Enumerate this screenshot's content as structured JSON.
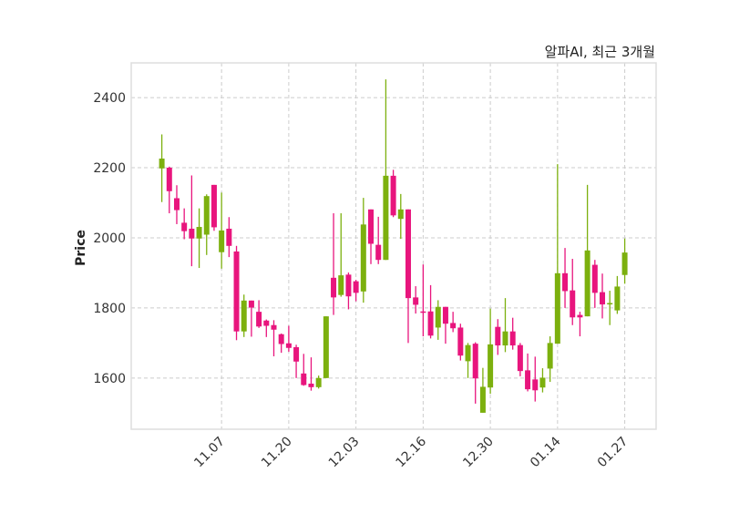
{
  "chart_data": {
    "type": "candlestick",
    "title": "알파AI, 최근 3개월",
    "ylabel": "Price",
    "xlabel": "",
    "ylim": [
      1454,
      2499
    ],
    "xlim": [
      -4.1,
      66.2
    ],
    "grid": true,
    "colors": {
      "up": "#7cb00e",
      "down": "#e8157d",
      "grid": "#cccccc",
      "frame": "#dddddd"
    },
    "yticks": [
      1600,
      1800,
      2000,
      2200,
      2400
    ],
    "ytick_labels": [
      "1600",
      "1800",
      "2000",
      "2200",
      "2400"
    ],
    "xticks": [
      {
        "index": 8,
        "label": "11.07"
      },
      {
        "index": 17,
        "label": "11.20"
      },
      {
        "index": 26,
        "label": "12.03"
      },
      {
        "index": 35,
        "label": "12.16"
      },
      {
        "index": 44,
        "label": "12.30"
      },
      {
        "index": 53,
        "label": "01.14"
      },
      {
        "index": 62,
        "label": "01.27"
      }
    ],
    "ohlc": [
      [
        2198,
        2295,
        2102,
        2226
      ],
      [
        2200,
        2203,
        2070,
        2133
      ],
      [
        2113,
        2150,
        2039,
        2079
      ],
      [
        2043,
        2084,
        1996,
        2019
      ],
      [
        2026,
        2178,
        1919,
        1998
      ],
      [
        1998,
        2084,
        1914,
        2031
      ],
      [
        2009,
        2124,
        1951,
        2119
      ],
      [
        2151,
        2151,
        2020,
        2030
      ],
      [
        1959,
        2129,
        1912,
        2021
      ],
      [
        2026,
        2059,
        1945,
        1977
      ],
      [
        1961,
        1977,
        1708,
        1733
      ],
      [
        1733,
        1838,
        1717,
        1821
      ],
      [
        1821,
        1821,
        1718,
        1801
      ],
      [
        1789,
        1822,
        1743,
        1747
      ],
      [
        1764,
        1767,
        1717,
        1749
      ],
      [
        1751,
        1765,
        1662,
        1738
      ],
      [
        1725,
        1727,
        1672,
        1697
      ],
      [
        1699,
        1749,
        1675,
        1686
      ],
      [
        1688,
        1695,
        1600,
        1647
      ],
      [
        1613,
        1669,
        1578,
        1580
      ],
      [
        1584,
        1659,
        1564,
        1574
      ],
      [
        1574,
        1607,
        1570,
        1600
      ],
      [
        1600,
        1776,
        1600,
        1776
      ],
      [
        1886,
        2070,
        1780,
        1830
      ],
      [
        1837,
        2070,
        1832,
        1893
      ],
      [
        1895,
        1901,
        1796,
        1833
      ],
      [
        1876,
        1880,
        1819,
        1843
      ],
      [
        1847,
        2114,
        1815,
        2038
      ],
      [
        2081,
        2081,
        1925,
        1983
      ],
      [
        1980,
        2060,
        1925,
        1937
      ],
      [
        1937,
        2452,
        1937,
        2177
      ],
      [
        2177,
        2194,
        2059,
        2064
      ],
      [
        2054,
        2125,
        1997,
        2081
      ],
      [
        2081,
        2081,
        1700,
        1828
      ],
      [
        1830,
        1862,
        1784,
        1809
      ],
      [
        1790,
        1924,
        1719,
        1789
      ],
      [
        1790,
        1865,
        1713,
        1721
      ],
      [
        1744,
        1822,
        1709,
        1803
      ],
      [
        1803,
        1803,
        1698,
        1755
      ],
      [
        1757,
        1789,
        1731,
        1742
      ],
      [
        1744,
        1755,
        1650,
        1664
      ],
      [
        1648,
        1700,
        1600,
        1694
      ],
      [
        1698,
        1702,
        1527,
        1599
      ],
      [
        1501,
        1629,
        1501,
        1575
      ],
      [
        1573,
        1798,
        1555,
        1696
      ],
      [
        1746,
        1768,
        1666,
        1693
      ],
      [
        1693,
        1828,
        1674,
        1733
      ],
      [
        1733,
        1772,
        1681,
        1693
      ],
      [
        1694,
        1700,
        1605,
        1620
      ],
      [
        1622,
        1670,
        1562,
        1568
      ],
      [
        1596,
        1661,
        1533,
        1565
      ],
      [
        1573,
        1628,
        1559,
        1601
      ],
      [
        1627,
        1719,
        1589,
        1700
      ],
      [
        1698,
        2210,
        1698,
        1899
      ],
      [
        1899,
        1971,
        1800,
        1848
      ],
      [
        1850,
        1940,
        1751,
        1773
      ],
      [
        1780,
        1789,
        1719,
        1773
      ],
      [
        1776,
        2151,
        1776,
        1964
      ],
      [
        1923,
        1937,
        1800,
        1843
      ],
      [
        1845,
        1898,
        1770,
        1810
      ],
      [
        1810,
        1849,
        1751,
        1814
      ],
      [
        1793,
        1891,
        1783,
        1861
      ],
      [
        1894,
        1998,
        1869,
        1958
      ]
    ]
  }
}
